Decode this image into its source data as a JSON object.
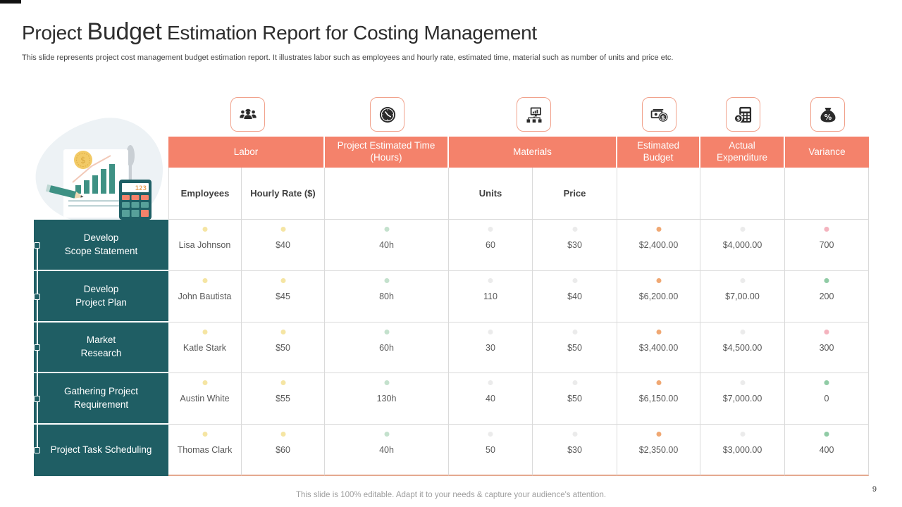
{
  "slide": {
    "title": {
      "part1": "Project ",
      "part2": "Budget",
      "part3": " Estimation Report for Costing Management"
    },
    "subtitle": "This slide represents project cost management budget estimation report. It illustrates labor such as employees and hourly rate, estimated time, material such as number of units and price etc.",
    "footer": "This slide is 100% editable. Adapt it to your needs & capture your audience's attention.",
    "page_number": "9"
  },
  "colors": {
    "accent_orange": "#F4826B",
    "teal": "#1F5E64",
    "table_border": "#DADADA",
    "table_bottom_border": "#E4A98F",
    "dot_yellow": "#F5E5A3",
    "dot_green_light": "#C4E1CD",
    "dot_gray": "#EBEBEB",
    "dot_orange": "#F0A873",
    "dot_pink": "#F4B3BE",
    "dot_green": "#90CBA5"
  },
  "icons": [
    {
      "name": "team-icon",
      "for": "Labor"
    },
    {
      "name": "clock-icon",
      "for": "Project Estimated Time (Hours)"
    },
    {
      "name": "computer-network-icon",
      "for": "Materials"
    },
    {
      "name": "money-icon",
      "for": "Estimated Budget"
    },
    {
      "name": "calculator-icon",
      "for": "Actual Expenditure"
    },
    {
      "name": "percent-bag-icon",
      "for": "Variance"
    }
  ],
  "table": {
    "group_headers": [
      {
        "label": "Labor"
      },
      {
        "label": "Project Estimated Time (Hours)"
      },
      {
        "label": "Materials"
      },
      {
        "label": "Estimated Budget"
      },
      {
        "label": "Actual Expenditure"
      },
      {
        "label": "Variance"
      }
    ],
    "sub_headers": {
      "employees": "Employees",
      "hourly_rate": "Hourly Rate ($)",
      "units": "Units",
      "price": "Price"
    },
    "rows": [
      {
        "task": "Develop\nScope Statement",
        "employee": "Lisa Johnson",
        "hourly_rate": "$40",
        "estimated_time": "40h",
        "units": "60",
        "price": "$30",
        "estimated_budget": "$2,400.00",
        "actual_expenditure": "$4,000.00",
        "variance": "700",
        "variance_dot": "pink"
      },
      {
        "task": "Develop\nProject Plan",
        "employee": "John Bautista",
        "hourly_rate": "$45",
        "estimated_time": "80h",
        "units": "110",
        "price": "$40",
        "estimated_budget": "$6,200.00",
        "actual_expenditure": "$7,00.00",
        "variance": "200",
        "variance_dot": "green"
      },
      {
        "task": "Market\nResearch",
        "employee": "Katle Stark",
        "hourly_rate": "$50",
        "estimated_time": "60h",
        "units": "30",
        "price": "$50",
        "estimated_budget": "$3,400.00",
        "actual_expenditure": "$4,500.00",
        "variance": "300",
        "variance_dot": "pink"
      },
      {
        "task": "Gathering Project\nRequirement",
        "employee": "Austin White",
        "hourly_rate": "$55",
        "estimated_time": "130h",
        "units": "40",
        "price": "$50",
        "estimated_budget": "$6,150.00",
        "actual_expenditure": "$7,000.00",
        "variance": "0",
        "variance_dot": "green"
      },
      {
        "task": "Project Task Scheduling",
        "employee": "Thomas Clark",
        "hourly_rate": "$60",
        "estimated_time": "40h",
        "units": "50",
        "price": "$30",
        "estimated_budget": "$2,350.00",
        "actual_expenditure": "$3,000.00",
        "variance": "400",
        "variance_dot": "green"
      }
    ]
  },
  "illustration": {
    "calculator_display": "123"
  }
}
